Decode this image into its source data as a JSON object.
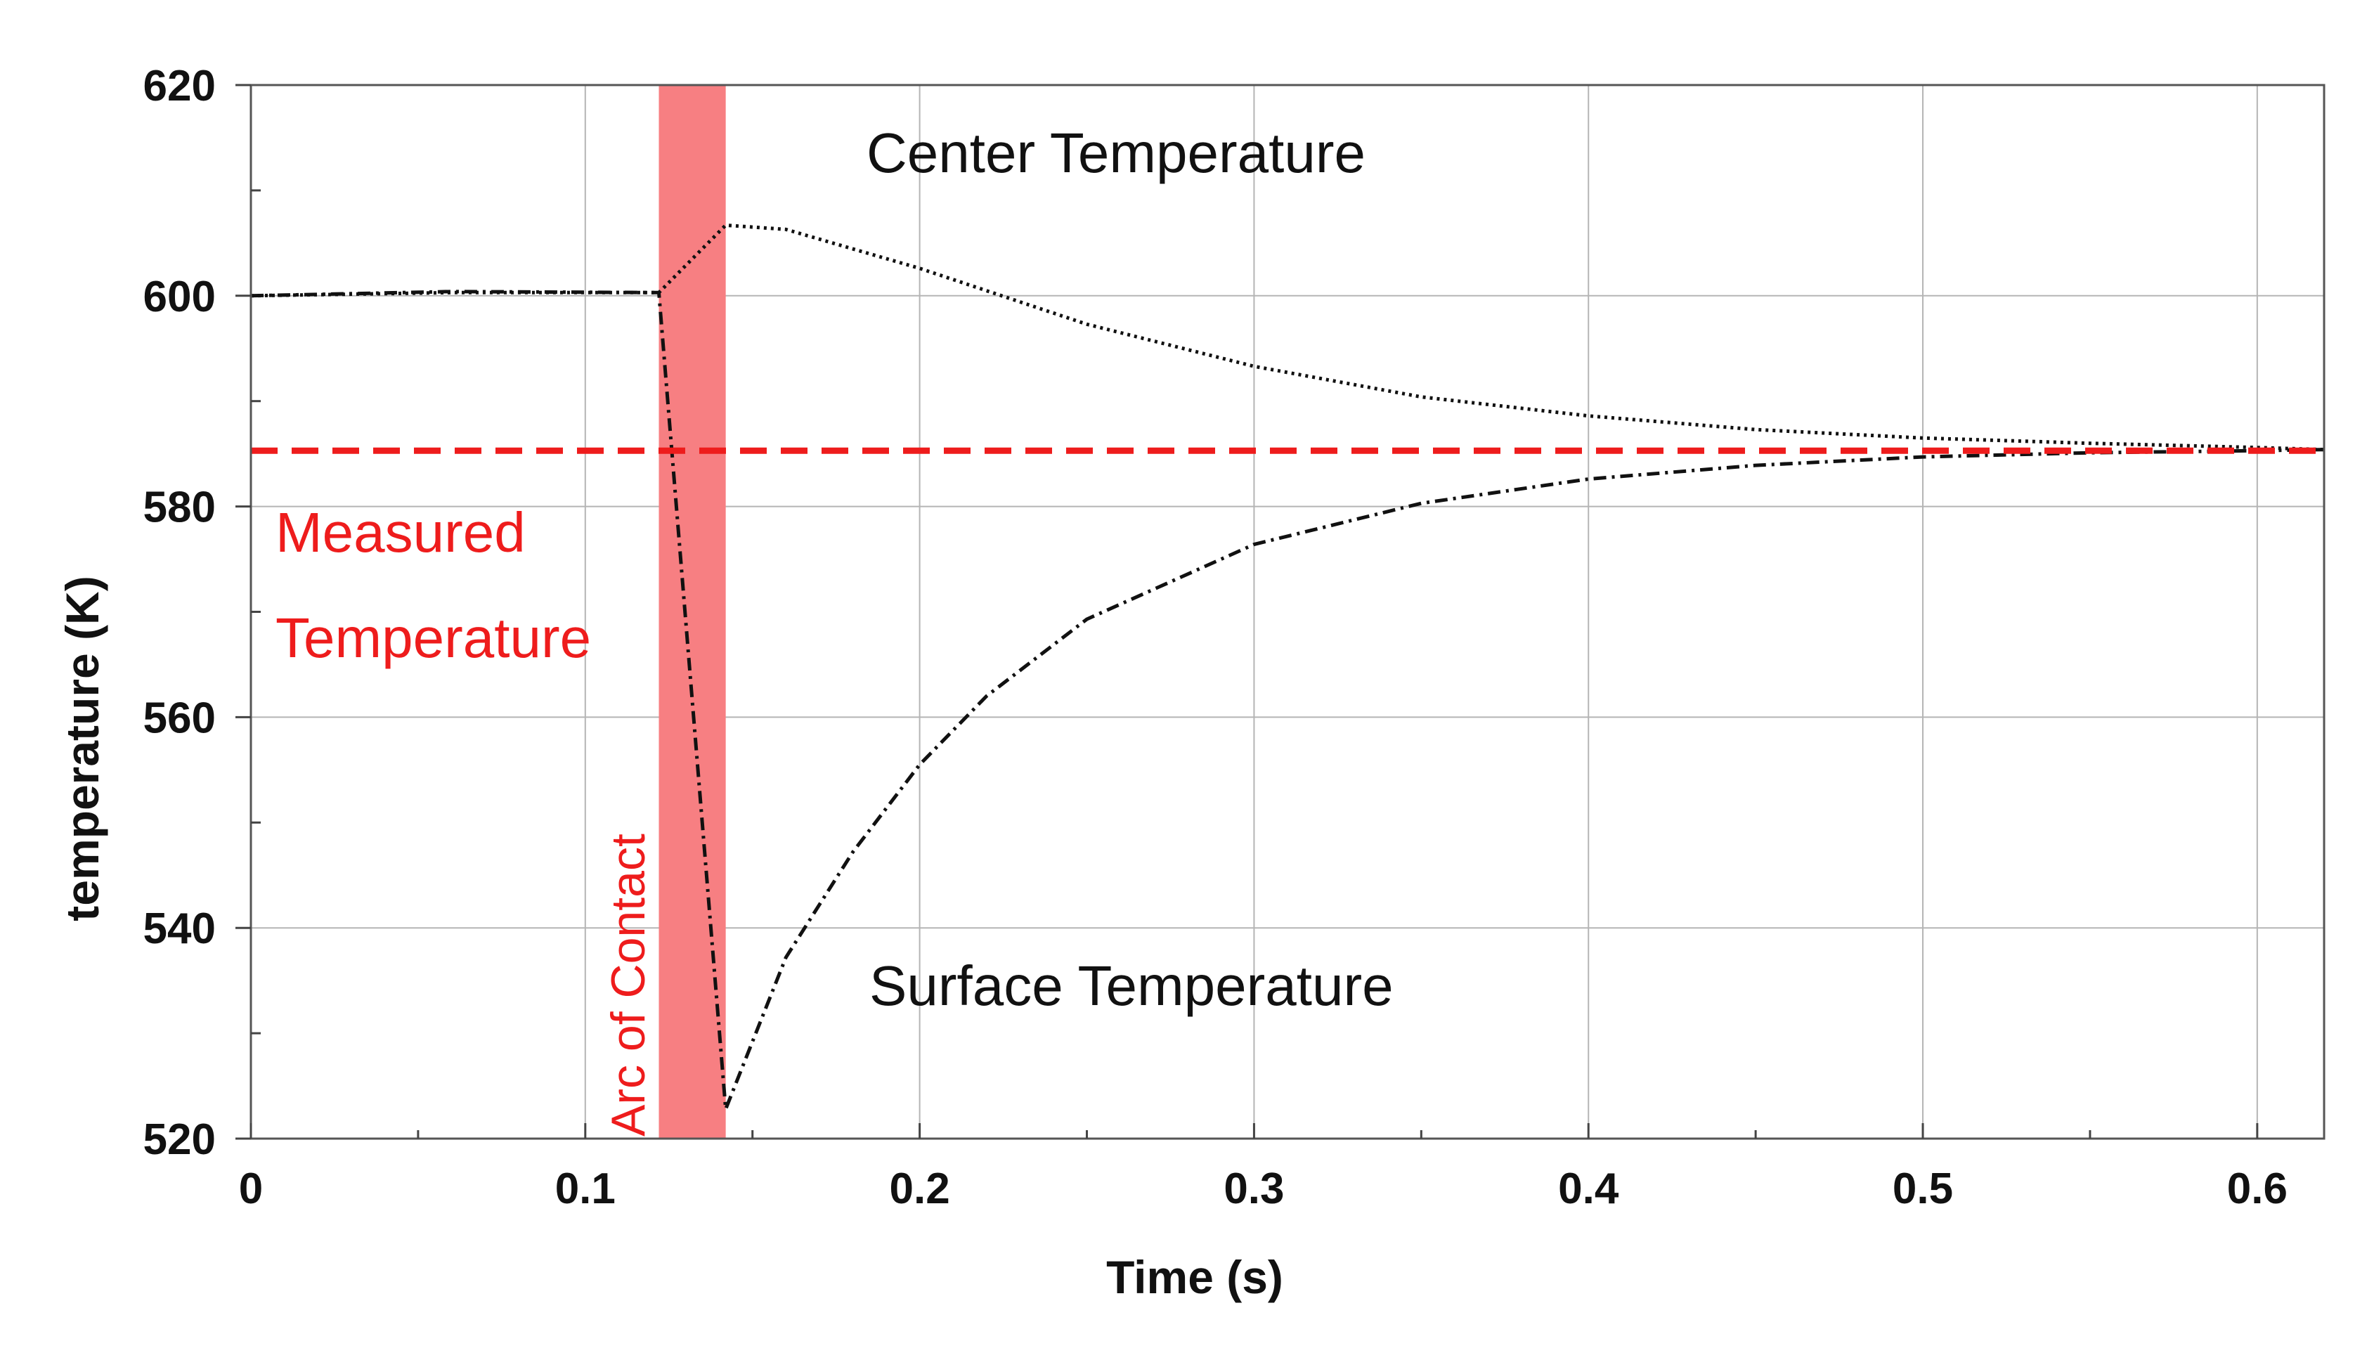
{
  "chart_data": {
    "type": "line",
    "xlabel": "Time (s)",
    "ylabel": "temperature (K)",
    "xlim": [
      0,
      0.62
    ],
    "ylim": [
      520,
      620
    ],
    "x_ticks": [
      0,
      0.1,
      0.2,
      0.3,
      0.4,
      0.5,
      0.6
    ],
    "x_tick_labels": [
      "0",
      "0.1",
      "0.2",
      "0.3",
      "0.4",
      "0.5",
      "0.6"
    ],
    "y_ticks": [
      520,
      540,
      560,
      580,
      600,
      620
    ],
    "y_tick_labels": [
      "520",
      "540",
      "560",
      "580",
      "600",
      "620"
    ],
    "grid": true,
    "series": [
      {
        "name": "Center Temperature",
        "style": "dotted",
        "color": "#111111",
        "x": [
          0,
          0.06,
          0.122,
          0.142,
          0.16,
          0.2,
          0.25,
          0.3,
          0.35,
          0.4,
          0.45,
          0.5,
          0.55,
          0.6,
          0.62
        ],
        "y": [
          600,
          600.3,
          600.3,
          606.7,
          606.3,
          602.6,
          597.3,
          593.3,
          590.4,
          588.6,
          587.3,
          586.5,
          586.0,
          585.6,
          585.4
        ]
      },
      {
        "name": "Surface Temperature",
        "style": "dashdot",
        "color": "#111111",
        "x": [
          0,
          0.06,
          0.122,
          0.142,
          0.16,
          0.18,
          0.2,
          0.22,
          0.25,
          0.3,
          0.35,
          0.4,
          0.45,
          0.5,
          0.55,
          0.6,
          0.62
        ],
        "y": [
          600,
          600.4,
          600.3,
          522.8,
          537.2,
          547.2,
          555.5,
          562.0,
          569.3,
          576.4,
          580.3,
          582.6,
          583.9,
          584.7,
          585.1,
          585.3,
          585.4
        ]
      },
      {
        "name": "Measured Temperature",
        "style": "dashed",
        "color": "#ee1c1c",
        "x": [
          0,
          0.62
        ],
        "y": [
          585.3,
          585.3
        ]
      }
    ],
    "shaded_region": {
      "label": "Arc of Contact",
      "x_start": 0.122,
      "x_end": 0.142,
      "color": "#f77f82"
    },
    "annotations": {
      "center": "Center Temperature",
      "surface": "Surface Temperature",
      "measured_line1": "Measured",
      "measured_line2": "Temperature",
      "arc": "Arc of Contact"
    },
    "annotation_color": "#ee1c1c"
  }
}
